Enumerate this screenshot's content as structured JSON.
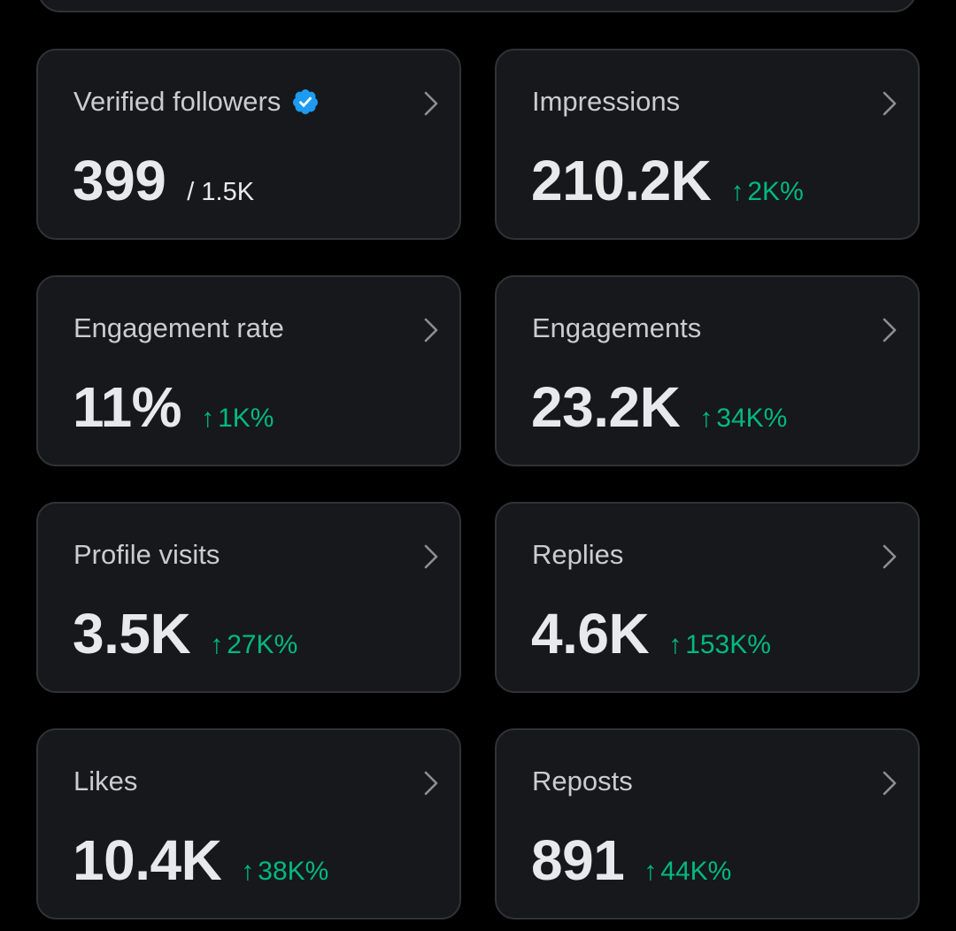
{
  "colors": {
    "background": "#000000",
    "card": "#16181c",
    "card_border": "#2f3336",
    "label": "#c9ccd0",
    "value": "#e7e9ea",
    "positive": "#00ba7c",
    "verified": "#1d9bf0"
  },
  "cards": [
    {
      "label": "Verified followers",
      "value": "399",
      "sub": "/ 1.5K",
      "icon": "verified-badge-icon"
    },
    {
      "label": "Impressions",
      "value": "210.2K",
      "arrow": "↑",
      "change": "2K%"
    },
    {
      "label": "Engagement rate",
      "value": "11%",
      "arrow": "↑",
      "change": "1K%"
    },
    {
      "label": "Engagements",
      "value": "23.2K",
      "arrow": "↑",
      "change": "34K%"
    },
    {
      "label": "Profile visits",
      "value": "3.5K",
      "arrow": "↑",
      "change": "27K%"
    },
    {
      "label": "Replies",
      "value": "4.6K",
      "arrow": "↑",
      "change": "153K%"
    },
    {
      "label": "Likes",
      "value": "10.4K",
      "arrow": "↑",
      "change": "38K%"
    },
    {
      "label": "Reposts",
      "value": "891",
      "arrow": "↑",
      "change": "44K%"
    }
  ],
  "chevron_icon": "chevron-right-icon"
}
